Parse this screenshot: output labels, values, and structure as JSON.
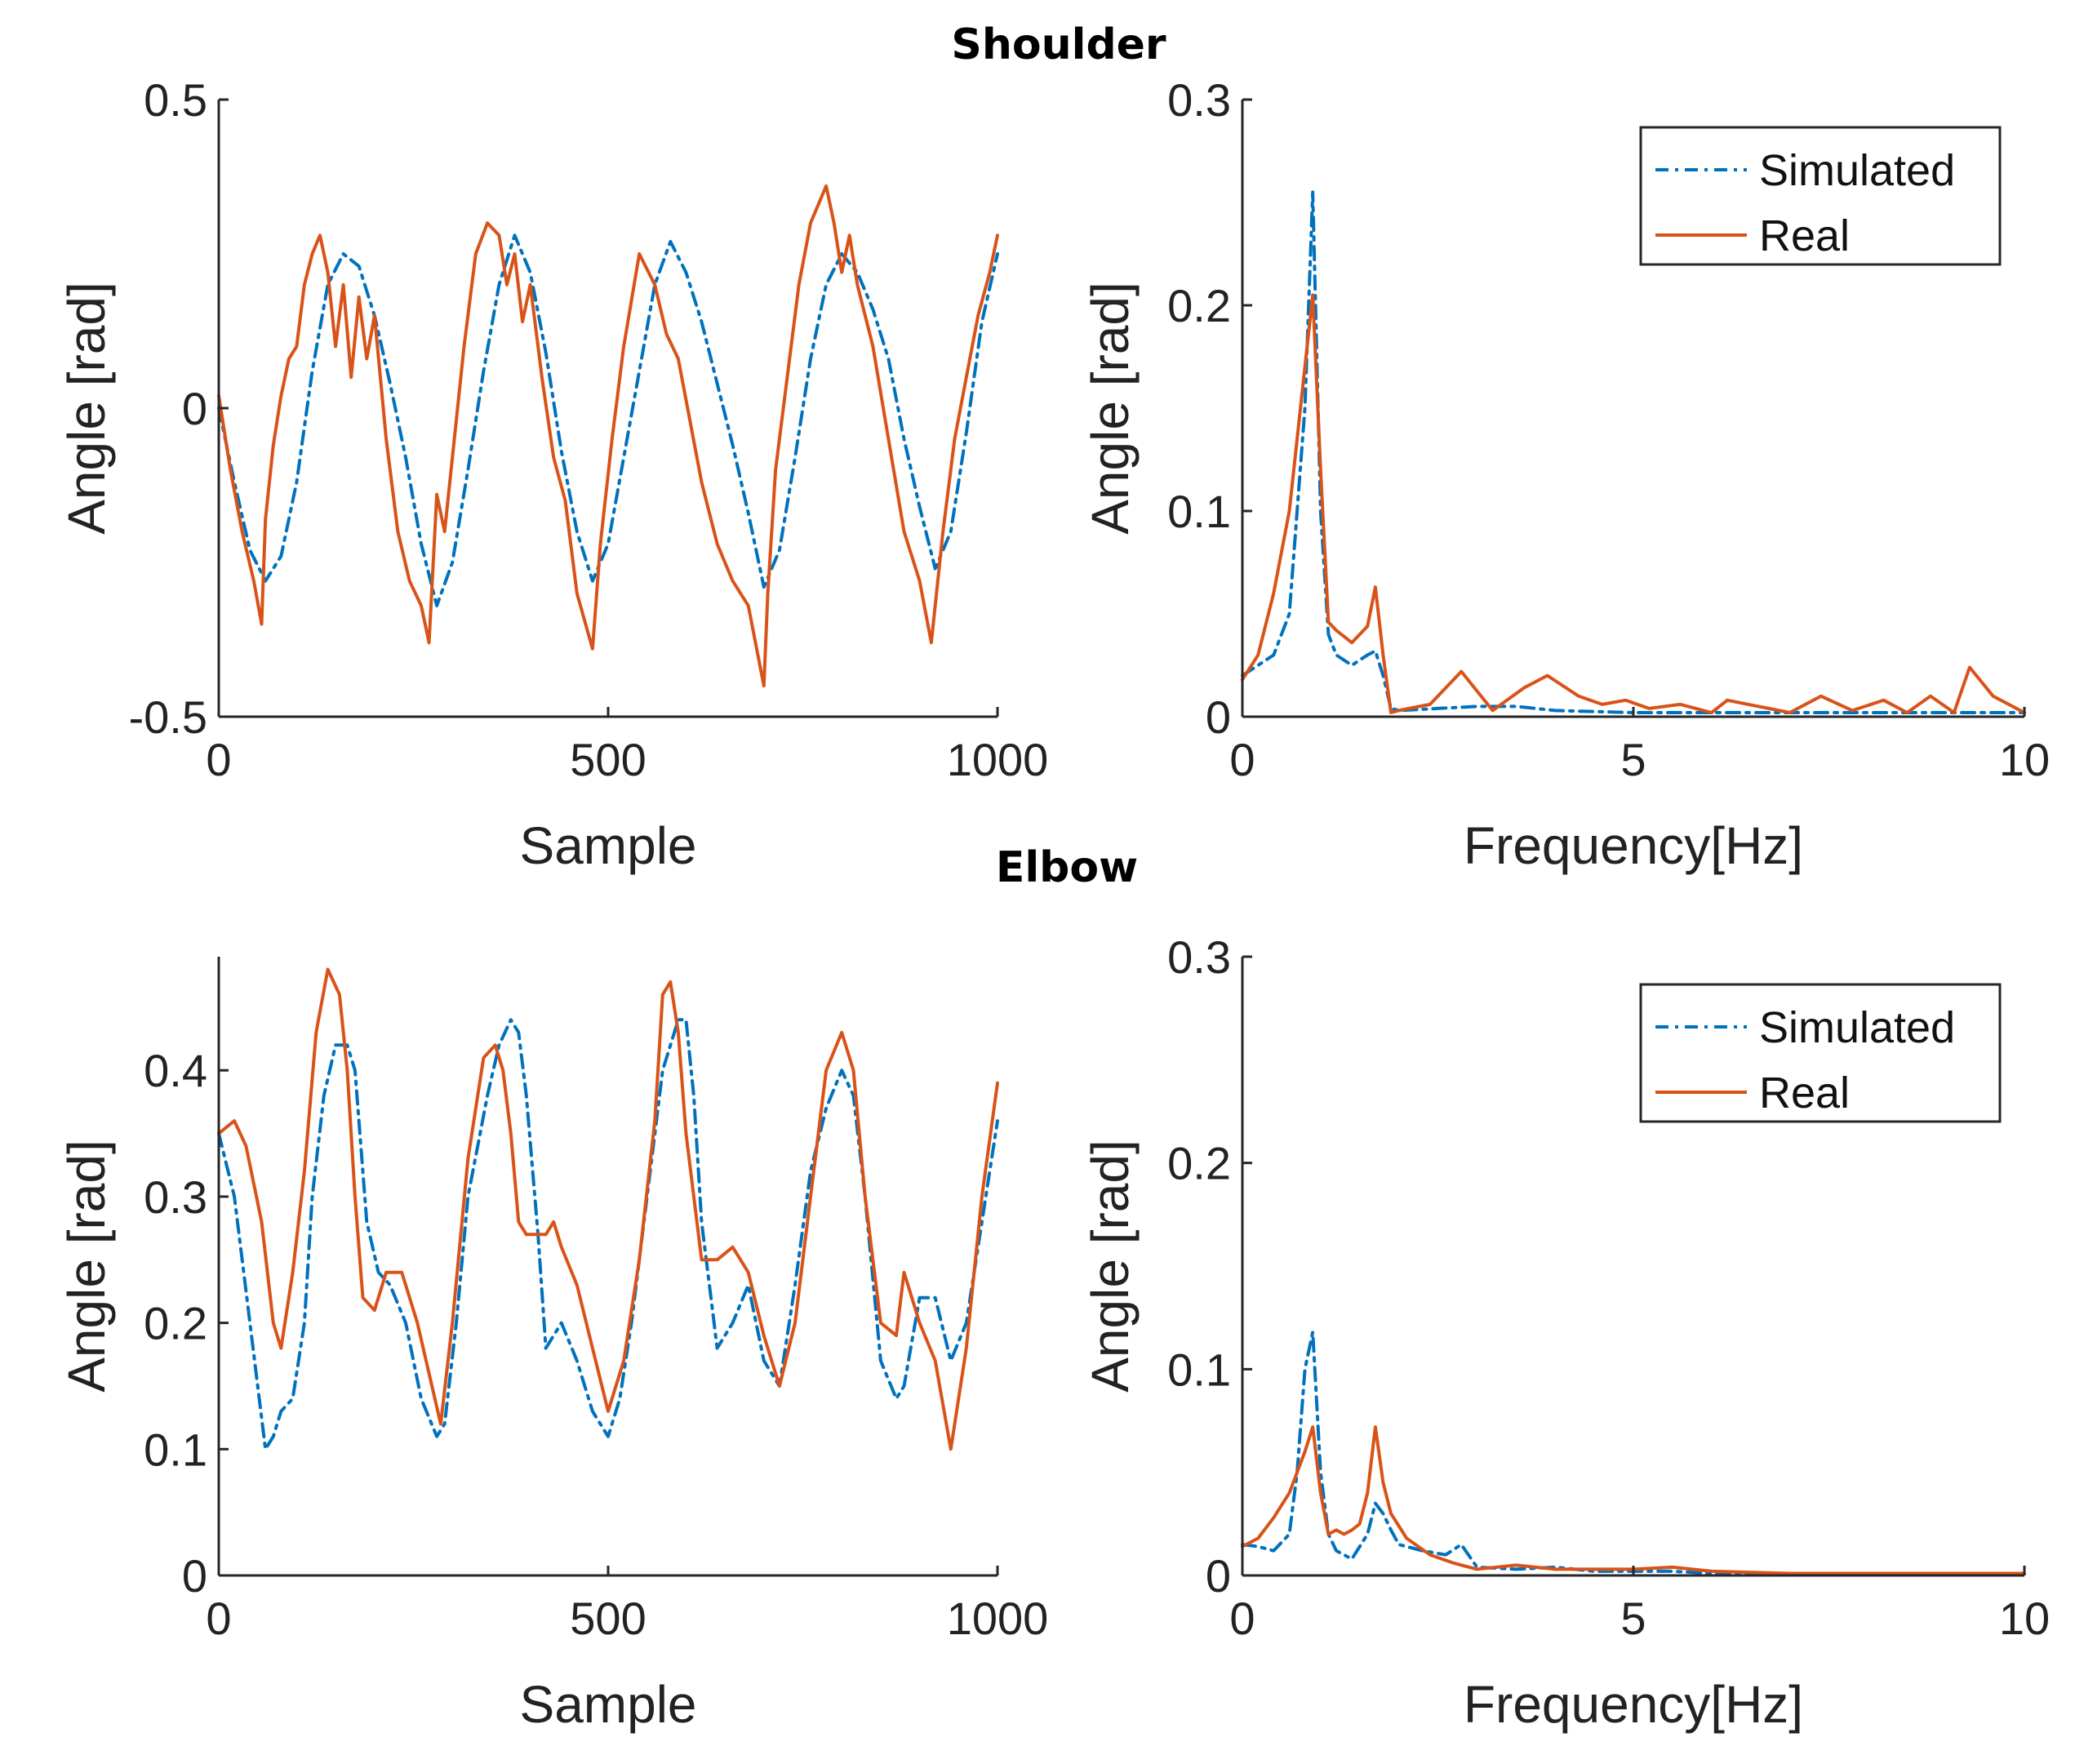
{
  "sections": {
    "top": "Shoulder",
    "bottom": "Elbow"
  },
  "colors": {
    "simulated": "#0072BD",
    "real": "#D95319",
    "axis": "#262626"
  },
  "chart_data": [
    {
      "id": "shoulder_time",
      "type": "line",
      "xlabel": "Sample",
      "ylabel": "Angle [rad]",
      "xlim": [
        0,
        1000
      ],
      "ylim": [
        -0.5,
        0.5
      ],
      "xticks": [
        0,
        500,
        1000
      ],
      "xtick_labels": [
        "0",
        "500",
        "1000"
      ],
      "yticks": [
        -0.5,
        0,
        0.5
      ],
      "ytick_labels": [
        "-0.5",
        "0",
        "0.5"
      ],
      "legend": null,
      "series": [
        {
          "name": "Simulated",
          "style": "dashdot",
          "x": [
            0,
            20,
            40,
            60,
            80,
            100,
            120,
            140,
            160,
            180,
            200,
            220,
            240,
            260,
            280,
            300,
            320,
            340,
            360,
            380,
            400,
            420,
            440,
            460,
            480,
            500,
            520,
            540,
            560,
            580,
            600,
            620,
            640,
            660,
            680,
            700,
            720,
            740,
            760,
            780,
            800,
            820,
            840,
            860,
            880,
            900,
            920,
            940,
            960,
            980,
            1000
          ],
          "values": [
            0.0,
            -0.12,
            -0.23,
            -0.28,
            -0.24,
            -0.12,
            0.06,
            0.2,
            0.25,
            0.23,
            0.15,
            0.04,
            -0.08,
            -0.22,
            -0.32,
            -0.25,
            -0.1,
            0.06,
            0.2,
            0.28,
            0.22,
            0.09,
            -0.07,
            -0.2,
            -0.28,
            -0.22,
            -0.08,
            0.06,
            0.2,
            0.27,
            0.22,
            0.14,
            0.04,
            -0.06,
            -0.17,
            -0.29,
            -0.23,
            -0.08,
            0.08,
            0.2,
            0.25,
            0.22,
            0.16,
            0.08,
            -0.05,
            -0.16,
            -0.26,
            -0.2,
            -0.04,
            0.14,
            0.25
          ]
        },
        {
          "name": "Real",
          "style": "solid",
          "x": [
            0,
            15,
            30,
            45,
            55,
            60,
            70,
            80,
            90,
            100,
            110,
            120,
            130,
            140,
            150,
            160,
            170,
            180,
            190,
            200,
            215,
            230,
            245,
            260,
            270,
            280,
            290,
            300,
            315,
            330,
            345,
            360,
            370,
            380,
            390,
            400,
            415,
            430,
            445,
            460,
            480,
            490,
            505,
            520,
            540,
            560,
            575,
            590,
            605,
            620,
            640,
            660,
            680,
            700,
            705,
            715,
            730,
            745,
            760,
            780,
            790,
            800,
            810,
            820,
            840,
            860,
            880,
            900,
            915,
            930,
            945,
            960,
            975,
            990,
            1000
          ],
          "values": [
            0.02,
            -0.1,
            -0.2,
            -0.28,
            -0.35,
            -0.18,
            -0.06,
            0.02,
            0.08,
            0.1,
            0.2,
            0.25,
            0.28,
            0.22,
            0.1,
            0.2,
            0.05,
            0.18,
            0.08,
            0.15,
            -0.05,
            -0.2,
            -0.28,
            -0.32,
            -0.38,
            -0.14,
            -0.2,
            -0.08,
            0.1,
            0.25,
            0.3,
            0.28,
            0.2,
            0.25,
            0.14,
            0.2,
            0.05,
            -0.08,
            -0.15,
            -0.3,
            -0.39,
            -0.22,
            -0.05,
            0.1,
            0.25,
            0.2,
            0.12,
            0.08,
            -0.02,
            -0.12,
            -0.22,
            -0.28,
            -0.32,
            -0.45,
            -0.3,
            -0.1,
            0.05,
            0.2,
            0.3,
            0.36,
            0.3,
            0.22,
            0.28,
            0.2,
            0.1,
            -0.05,
            -0.2,
            -0.28,
            -0.38,
            -0.2,
            -0.05,
            0.05,
            0.15,
            0.22,
            0.28
          ]
        }
      ]
    },
    {
      "id": "shoulder_freq",
      "type": "line",
      "xlabel": "Frequency[Hz]",
      "ylabel": "Angle [rad]",
      "xlim": [
        0,
        10
      ],
      "ylim": [
        0,
        0.3
      ],
      "xticks": [
        0,
        5,
        10
      ],
      "xtick_labels": [
        "0",
        "5",
        "10"
      ],
      "yticks": [
        0,
        0.1,
        0.2,
        0.3
      ],
      "ytick_labels": [
        "0",
        "0.1",
        "0.2",
        "0.3"
      ],
      "legend": {
        "placement": "top-right",
        "entries": [
          "Simulated",
          "Real"
        ]
      },
      "series": [
        {
          "name": "Simulated",
          "style": "dashdot",
          "x": [
            0,
            0.2,
            0.4,
            0.6,
            0.8,
            0.9,
            1.0,
            1.1,
            1.2,
            1.4,
            1.6,
            1.7,
            1.8,
            1.9,
            2.0,
            2.5,
            3.0,
            3.5,
            4.0,
            5.0,
            6.0,
            7.0,
            8.0,
            9.0,
            10.0
          ],
          "values": [
            0.02,
            0.025,
            0.03,
            0.05,
            0.15,
            0.255,
            0.1,
            0.04,
            0.03,
            0.025,
            0.03,
            0.032,
            0.02,
            0.004,
            0.003,
            0.004,
            0.005,
            0.005,
            0.003,
            0.002,
            0.002,
            0.002,
            0.002,
            0.002,
            0.002
          ]
        },
        {
          "name": "Real",
          "style": "solid",
          "x": [
            0,
            0.2,
            0.4,
            0.6,
            0.8,
            0.9,
            1.0,
            1.1,
            1.2,
            1.4,
            1.6,
            1.7,
            1.8,
            1.9,
            2.0,
            2.4,
            2.8,
            3.2,
            3.6,
            3.9,
            4.3,
            4.6,
            4.9,
            5.2,
            5.6,
            6.0,
            6.2,
            6.6,
            7.0,
            7.4,
            7.8,
            8.2,
            8.5,
            8.8,
            9.1,
            9.3,
            9.6,
            10.0
          ],
          "values": [
            0.018,
            0.03,
            0.06,
            0.1,
            0.17,
            0.205,
            0.12,
            0.046,
            0.042,
            0.036,
            0.044,
            0.063,
            0.03,
            0.002,
            0.003,
            0.006,
            0.022,
            0.003,
            0.014,
            0.02,
            0.01,
            0.006,
            0.008,
            0.004,
            0.006,
            0.002,
            0.008,
            0.005,
            0.002,
            0.01,
            0.003,
            0.008,
            0.002,
            0.01,
            0.002,
            0.024,
            0.01,
            0.002
          ]
        }
      ]
    },
    {
      "id": "elbow_time",
      "type": "line",
      "xlabel": "Sample",
      "ylabel": "Angle [rad]",
      "xlim": [
        0,
        1000
      ],
      "ylim": [
        0,
        0.49
      ],
      "xticks": [
        0,
        500,
        1000
      ],
      "xtick_labels": [
        "0",
        "500",
        "1000"
      ],
      "yticks": [
        0,
        0.1,
        0.2,
        0.3,
        0.4
      ],
      "ytick_labels": [
        "0",
        "0.1",
        "0.2",
        "0.3",
        "0.4"
      ],
      "legend": null,
      "series": [
        {
          "name": "Simulated",
          "style": "dashdot",
          "x": [
            0,
            20,
            40,
            60,
            70,
            80,
            95,
            110,
            120,
            135,
            150,
            165,
            175,
            190,
            205,
            220,
            240,
            260,
            280,
            290,
            305,
            320,
            345,
            360,
            375,
            385,
            395,
            410,
            420,
            440,
            460,
            480,
            500,
            515,
            530,
            550,
            570,
            590,
            600,
            610,
            620,
            640,
            660,
            680,
            700,
            720,
            740,
            760,
            780,
            800,
            815,
            830,
            850,
            870,
            880,
            900,
            920,
            940,
            960,
            980,
            1000
          ],
          "values": [
            0.35,
            0.3,
            0.2,
            0.1,
            0.11,
            0.13,
            0.14,
            0.2,
            0.3,
            0.38,
            0.42,
            0.42,
            0.4,
            0.28,
            0.24,
            0.23,
            0.2,
            0.14,
            0.11,
            0.12,
            0.2,
            0.3,
            0.38,
            0.42,
            0.44,
            0.43,
            0.38,
            0.27,
            0.18,
            0.2,
            0.17,
            0.13,
            0.11,
            0.14,
            0.2,
            0.3,
            0.4,
            0.44,
            0.44,
            0.38,
            0.28,
            0.18,
            0.2,
            0.23,
            0.17,
            0.15,
            0.23,
            0.32,
            0.37,
            0.4,
            0.38,
            0.3,
            0.17,
            0.14,
            0.15,
            0.22,
            0.22,
            0.17,
            0.2,
            0.28,
            0.36
          ]
        },
        {
          "name": "Real",
          "style": "solid",
          "x": [
            0,
            20,
            35,
            55,
            70,
            80,
            95,
            110,
            125,
            140,
            155,
            165,
            175,
            185,
            200,
            215,
            235,
            255,
            270,
            285,
            300,
            320,
            340,
            355,
            365,
            375,
            385,
            395,
            410,
            420,
            430,
            440,
            460,
            480,
            500,
            520,
            540,
            560,
            570,
            580,
            590,
            600,
            620,
            640,
            660,
            680,
            700,
            720,
            740,
            760,
            780,
            800,
            815,
            830,
            850,
            870,
            880,
            900,
            920,
            940,
            960,
            980,
            1000
          ],
          "values": [
            0.35,
            0.36,
            0.34,
            0.28,
            0.2,
            0.18,
            0.24,
            0.32,
            0.43,
            0.48,
            0.46,
            0.4,
            0.3,
            0.22,
            0.21,
            0.24,
            0.24,
            0.2,
            0.16,
            0.12,
            0.2,
            0.33,
            0.41,
            0.42,
            0.4,
            0.35,
            0.28,
            0.27,
            0.27,
            0.27,
            0.28,
            0.26,
            0.23,
            0.18,
            0.13,
            0.17,
            0.25,
            0.36,
            0.46,
            0.47,
            0.43,
            0.35,
            0.25,
            0.25,
            0.26,
            0.24,
            0.19,
            0.15,
            0.2,
            0.3,
            0.4,
            0.43,
            0.4,
            0.3,
            0.2,
            0.19,
            0.24,
            0.2,
            0.17,
            0.1,
            0.18,
            0.3,
            0.39
          ]
        }
      ]
    },
    {
      "id": "elbow_freq",
      "type": "line",
      "xlabel": "Frequency[Hz]",
      "ylabel": "Angle [rad]",
      "xlim": [
        0,
        10
      ],
      "ylim": [
        0,
        0.3
      ],
      "xticks": [
        0,
        5,
        10
      ],
      "xtick_labels": [
        "0",
        "5",
        "10"
      ],
      "yticks": [
        0,
        0.1,
        0.2,
        0.3
      ],
      "ytick_labels": [
        "0",
        "0.1",
        "0.2",
        "0.3"
      ],
      "legend": {
        "placement": "top-right",
        "entries": [
          "Simulated",
          "Real"
        ]
      },
      "series": [
        {
          "name": "Simulated",
          "style": "dashdot",
          "x": [
            0,
            0.2,
            0.4,
            0.6,
            0.7,
            0.8,
            0.9,
            1.0,
            1.1,
            1.2,
            1.4,
            1.6,
            1.7,
            1.8,
            1.9,
            2.0,
            2.3,
            2.6,
            2.8,
            3.0,
            3.5,
            4.0,
            4.5,
            5.0,
            5.5,
            6.0,
            7.0,
            8.0,
            9.0,
            10.0
          ],
          "values": [
            0.015,
            0.014,
            0.012,
            0.02,
            0.05,
            0.1,
            0.118,
            0.05,
            0.02,
            0.012,
            0.008,
            0.02,
            0.035,
            0.03,
            0.022,
            0.015,
            0.012,
            0.01,
            0.015,
            0.004,
            0.003,
            0.004,
            0.002,
            0.002,
            0.002,
            0.001,
            0.001,
            0.001,
            0.001,
            0.001
          ]
        },
        {
          "name": "Real",
          "style": "solid",
          "x": [
            0,
            0.2,
            0.4,
            0.6,
            0.8,
            0.9,
            1.0,
            1.1,
            1.2,
            1.3,
            1.4,
            1.5,
            1.6,
            1.7,
            1.8,
            1.9,
            2.1,
            2.4,
            2.7,
            3.0,
            3.5,
            4.0,
            4.5,
            5.0,
            5.5,
            6.0,
            7.0,
            8.0,
            9.0,
            10.0
          ],
          "values": [
            0.014,
            0.018,
            0.028,
            0.04,
            0.06,
            0.072,
            0.04,
            0.02,
            0.022,
            0.02,
            0.022,
            0.025,
            0.04,
            0.072,
            0.045,
            0.03,
            0.018,
            0.01,
            0.006,
            0.003,
            0.005,
            0.003,
            0.003,
            0.003,
            0.004,
            0.002,
            0.001,
            0.001,
            0.001,
            0.001
          ]
        }
      ]
    }
  ]
}
